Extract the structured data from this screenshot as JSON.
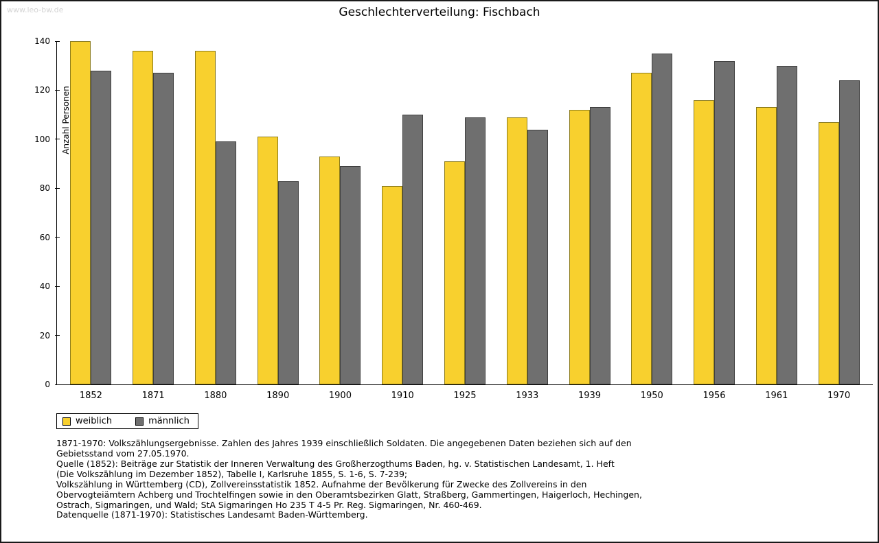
{
  "watermark": "www.leo-bw.de",
  "title": "Geschlechterverteilung: Fischbach",
  "chart_data": {
    "type": "bar",
    "title": "Geschlechterverteilung: Fischbach",
    "xlabel": "",
    "ylabel": "Anzahl Personen",
    "ylim": [
      0,
      140
    ],
    "ytick_step": 20,
    "grid": false,
    "legend_position": "bottom-left",
    "categories": [
      "1852",
      "1871",
      "1880",
      "1890",
      "1900",
      "1910",
      "1925",
      "1933",
      "1939",
      "1950",
      "1956",
      "1961",
      "1970"
    ],
    "series": [
      {
        "name": "weiblich",
        "color": "#F8D02E",
        "border": "#8a7a1a",
        "values": [
          140,
          136,
          136,
          101,
          93,
          81,
          91,
          109,
          112,
          127,
          116,
          113,
          107
        ]
      },
      {
        "name": "männlich",
        "color": "#6F6F6F",
        "border": "#3f3f3f",
        "values": [
          128,
          127,
          99,
          83,
          89,
          110,
          109,
          104,
          113,
          135,
          132,
          130,
          124
        ]
      }
    ]
  },
  "legend": {
    "items": [
      {
        "label": "weiblich",
        "color": "#F8D02E"
      },
      {
        "label": "männlich",
        "color": "#6F6F6F"
      }
    ]
  },
  "notes": {
    "lines": [
      "1871-1970: Volkszählungsergebnisse. Zahlen des Jahres 1939 einschließlich Soldaten. Die angegebenen Daten beziehen sich auf den",
      "Gebietsstand vom 27.05.1970.",
      "Quelle (1852): Beiträge zur Statistik der Inneren Verwaltung des Großherzogthums Baden, hg. v. Statistischen Landesamt, 1. Heft",
      "(Die Volkszählung im Dezember 1852), Tabelle I, Karlsruhe 1855, S. 1-6, S. 7-239;",
      "Volkszählung in Württemberg (CD), Zollvereinsstatistik 1852. Aufnahme der Bevölkerung für Zwecke des Zollvereins in den",
      "Obervogteiämtern Achberg und Trochtelfingen sowie in den Oberamtsbezirken Glatt, Straßberg, Gammertingen, Haigerloch, Hechingen,",
      "Ostrach, Sigmaringen, und Wald; StA Sigmaringen Ho 235 T 4-5 Pr. Reg. Sigmaringen, Nr. 460-469."
    ],
    "datenquelle": "Datenquelle (1871-1970): Statistisches Landesamt Baden-Württemberg."
  }
}
